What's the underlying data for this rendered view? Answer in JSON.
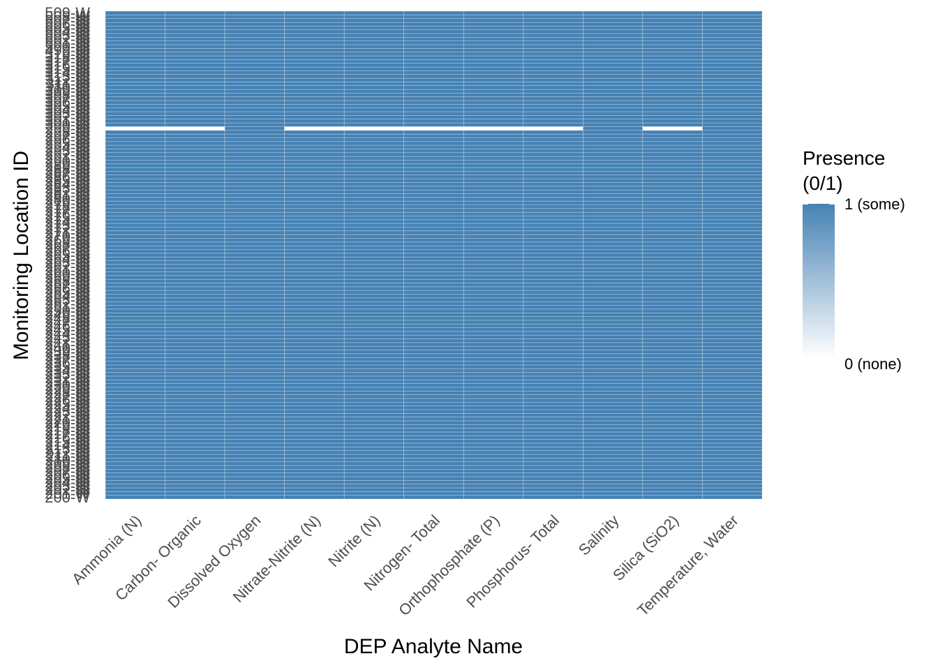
{
  "chart_data": {
    "type": "heatmap",
    "title": "",
    "xlabel": "DEP Analyte Name",
    "ylabel": "Monitoring Location ID",
    "x": [
      "Ammonia (N)",
      "Carbon- Organic",
      "Dissolved Oxygen",
      "Nitrate-Nitrite (N)",
      "Nitrite (N)",
      "Nitrogen- Total",
      "Orthophosphate (P)",
      "Phosphorus- Total",
      "Salinity",
      "Silica (SiO2)",
      "Temperature, Water"
    ],
    "y": [
      "200-W",
      "201-W",
      "202-W",
      "203-W",
      "204-W",
      "205-W",
      "206-W",
      "207-W",
      "208-W",
      "209-W",
      "210-W",
      "211-W",
      "212-W",
      "213-W",
      "214-W",
      "215-W",
      "216-W",
      "217-W",
      "218-W",
      "219-W",
      "220-W",
      "221-W",
      "222-W",
      "223-W",
      "224-W",
      "225-W",
      "226-W",
      "227-W",
      "228-W",
      "229-W",
      "230-W",
      "231-W",
      "232-W",
      "233-W",
      "234-W",
      "235-W",
      "236-W",
      "237-W",
      "238-W",
      "239-W",
      "240-W",
      "241-W",
      "242-W",
      "243-W",
      "244-W",
      "245-W",
      "246-W",
      "247-W",
      "248-W",
      "249-W",
      "250-W",
      "251-W",
      "252-W",
      "253-W",
      "254-W",
      "255-W",
      "256-W",
      "257-W",
      "258-W",
      "259-W",
      "260-W",
      "261-W",
      "262-W",
      "263-W",
      "264-W",
      "265-W",
      "266-W",
      "267-W",
      "268-W",
      "269-W",
      "270-W",
      "271-W",
      "272-W",
      "273-W",
      "274-W",
      "275-W",
      "276-W",
      "277-W",
      "278-W",
      "279-W",
      "280-W",
      "281-W",
      "282-W",
      "283-W",
      "284-W",
      "285-W",
      "286-W",
      "287-W",
      "288-W",
      "289-W",
      "290-W",
      "291-W",
      "292-W",
      "293-W",
      "294-W",
      "295-W",
      "296-W",
      "297-W",
      "298-W",
      "299-W",
      "300-W",
      "301-W",
      "302-W",
      "303-W",
      "304-W",
      "305-W",
      "306-W",
      "307-W",
      "308-W",
      "309-W",
      "310-W",
      "311-W",
      "312-W",
      "313-W",
      "314-W",
      "315-W",
      "316-W",
      "317-W",
      "318-W",
      "319-W",
      "499-W",
      "500-W",
      "501-W",
      "502-W",
      "503-W",
      "504-W",
      "505-W",
      "506-W",
      "507-W",
      "508-W",
      "509-W"
    ],
    "missing_row": "299-W",
    "missing_columns": [
      "Ammonia (N)",
      "Carbon- Organic",
      "Nitrate-Nitrite (N)",
      "Nitrite (N)",
      "Nitrogen- Total",
      "Orthophosphate (P)",
      "Phosphorus- Total",
      "Silica (SiO2)"
    ],
    "legend": {
      "title_line1": "Presence",
      "title_line2": "(0/1)",
      "high_label": "1 (some)",
      "low_label": "0 (none)",
      "placement": "right"
    },
    "colors": {
      "high": "#4682b4",
      "low": "#ffffff",
      "missing": "#ffffff"
    }
  }
}
